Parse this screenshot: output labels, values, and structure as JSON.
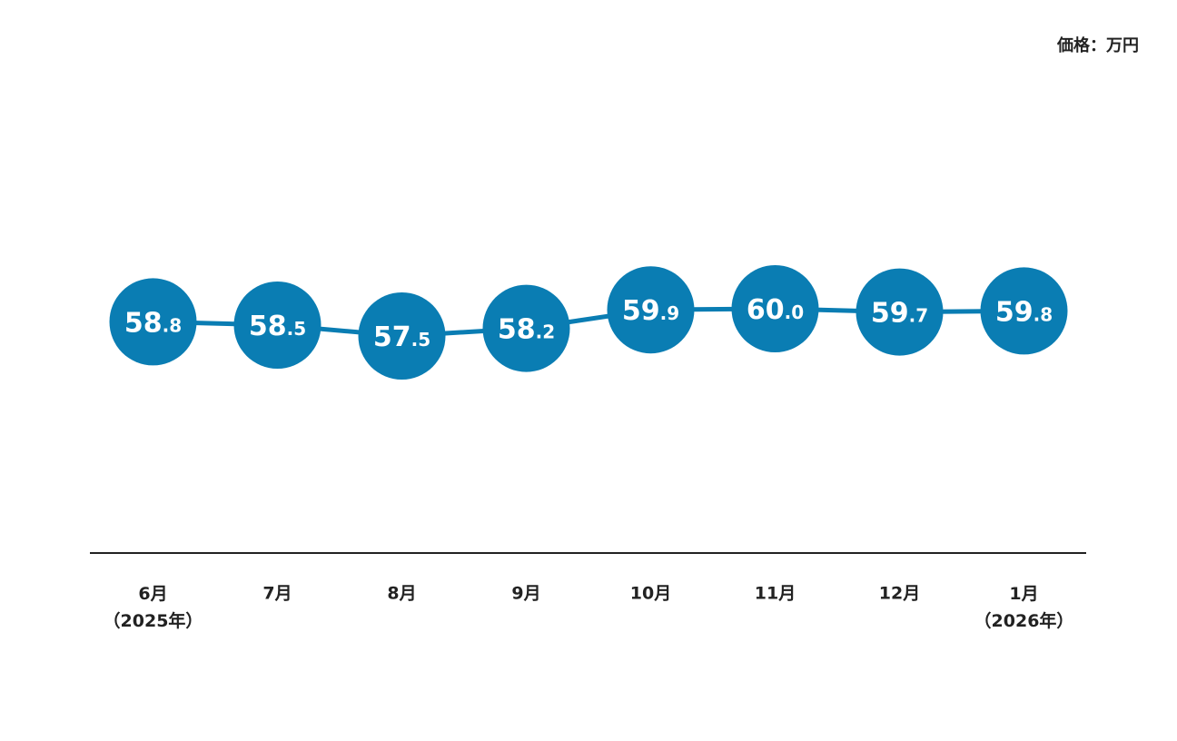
{
  "chart_data": {
    "type": "line",
    "unit": "価格：万円",
    "categories": [
      "6月\n（2025年）",
      "7月",
      "8月",
      "9月",
      "10月",
      "11月",
      "12月",
      "1月\n（2026年）"
    ],
    "series": [
      {
        "color": "#0a7db3",
        "values": [
          58.8,
          58.5,
          57.5,
          58.2,
          59.9,
          60.0,
          59.7,
          59.8
        ],
        "value_labels": [
          "58.8",
          "58.5",
          "57.5",
          "58.2",
          "59.9",
          "60.0",
          "59.7",
          "59.8"
        ]
      }
    ],
    "ylim": [
      40,
      70
    ]
  }
}
